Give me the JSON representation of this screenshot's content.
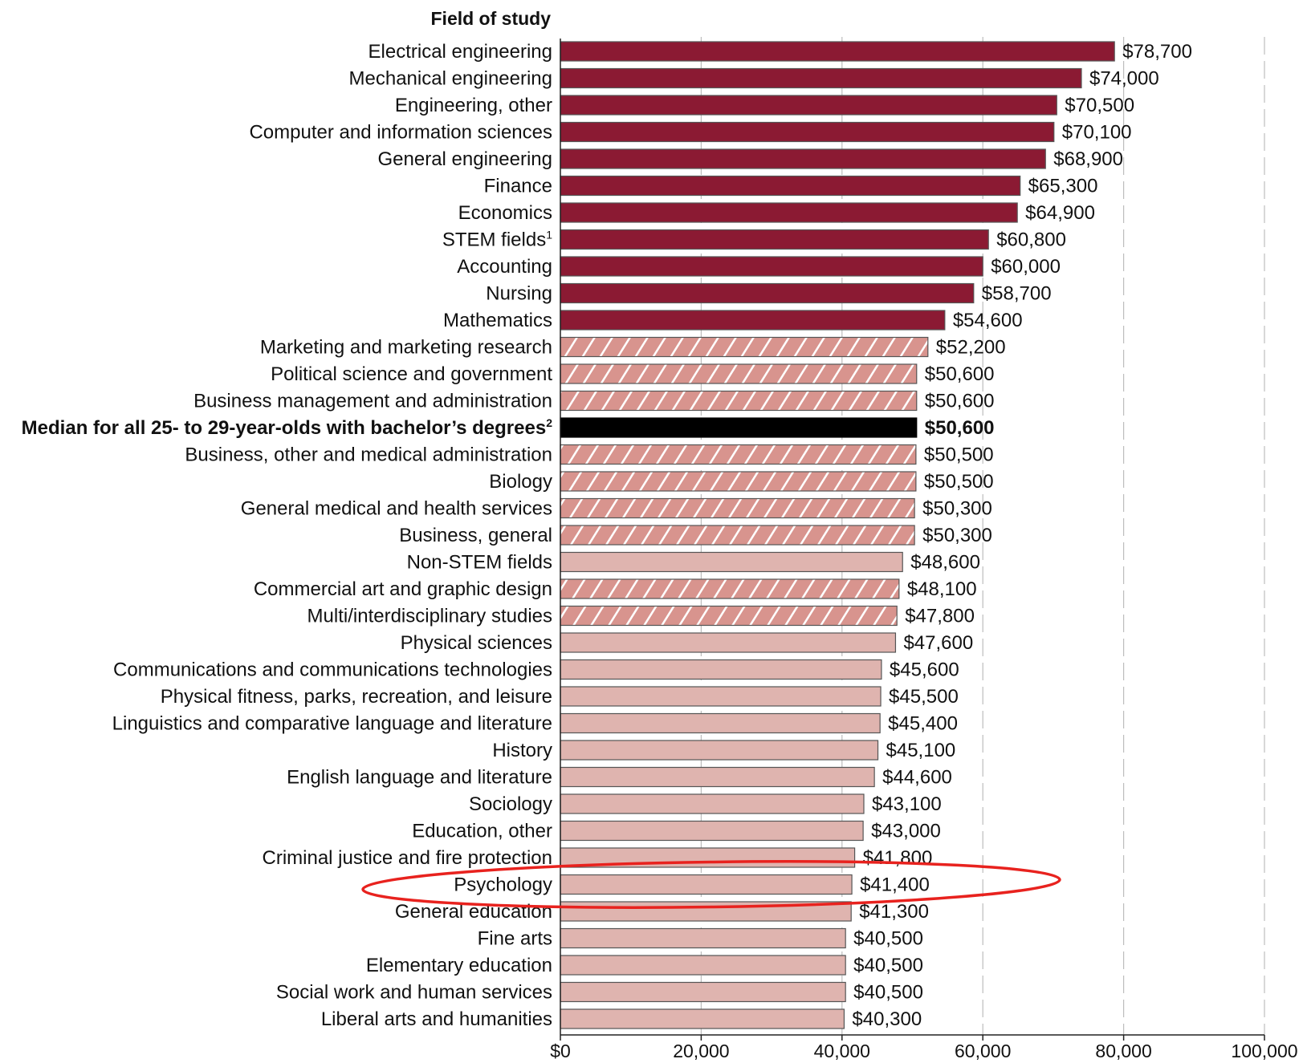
{
  "chart_data": {
    "type": "bar",
    "orientation": "horizontal",
    "category_axis_title": "Field of study",
    "xlim": [
      0,
      100000
    ],
    "x_ticks": [
      "$0",
      "20,000",
      "40,000",
      "60,000",
      "80,000",
      "100,000"
    ],
    "x_tick_values": [
      0,
      20000,
      40000,
      60000,
      80000,
      100000
    ],
    "grid": "vertical dashed",
    "colors": {
      "above_median": "#8b1a33",
      "near_median": "#d8948e",
      "below_median": "#dfb4af",
      "median": "#000000",
      "highlight_ellipse": "#e8221e"
    },
    "bars": [
      {
        "label": "Electrical engineering",
        "value": 78700,
        "value_label": "$78,700",
        "style": "above_median"
      },
      {
        "label": "Mechanical engineering",
        "value": 74000,
        "value_label": "$74,000",
        "style": "above_median"
      },
      {
        "label": "Engineering, other",
        "value": 70500,
        "value_label": "$70,500",
        "style": "above_median"
      },
      {
        "label": "Computer and information sciences",
        "value": 70100,
        "value_label": "$70,100",
        "style": "above_median"
      },
      {
        "label": "General engineering",
        "value": 68900,
        "value_label": "$68,900",
        "style": "above_median"
      },
      {
        "label": "Finance",
        "value": 65300,
        "value_label": "$65,300",
        "style": "above_median"
      },
      {
        "label": "Economics",
        "value": 64900,
        "value_label": "$64,900",
        "style": "above_median"
      },
      {
        "label": "STEM fields",
        "footnote": "1",
        "value": 60800,
        "value_label": "$60,800",
        "style": "above_median"
      },
      {
        "label": "Accounting",
        "value": 60000,
        "value_label": "$60,000",
        "style": "above_median"
      },
      {
        "label": "Nursing",
        "value": 58700,
        "value_label": "$58,700",
        "style": "above_median"
      },
      {
        "label": "Mathematics",
        "value": 54600,
        "value_label": "$54,600",
        "style": "above_median"
      },
      {
        "label": "Marketing and marketing research",
        "value": 52200,
        "value_label": "$52,200",
        "style": "near_median"
      },
      {
        "label": "Political science and government",
        "value": 50600,
        "value_label": "$50,600",
        "style": "near_median"
      },
      {
        "label": "Business management and administration",
        "value": 50600,
        "value_label": "$50,600",
        "style": "near_median"
      },
      {
        "label": "Median for all 25- to 29-year-olds with bachelor’s degrees",
        "footnote": "2",
        "value": 50600,
        "value_label": "$50,600",
        "style": "median"
      },
      {
        "label": "Business, other and medical administration",
        "value": 50500,
        "value_label": "$50,500",
        "style": "near_median"
      },
      {
        "label": "Biology",
        "value": 50500,
        "value_label": "$50,500",
        "style": "near_median"
      },
      {
        "label": "General medical and health services",
        "value": 50300,
        "value_label": "$50,300",
        "style": "near_median"
      },
      {
        "label": "Business, general",
        "value": 50300,
        "value_label": "$50,300",
        "style": "near_median"
      },
      {
        "label": "Non-STEM fields",
        "value": 48600,
        "value_label": "$48,600",
        "style": "below_median"
      },
      {
        "label": "Commercial art and graphic design",
        "value": 48100,
        "value_label": "$48,100",
        "style": "near_median"
      },
      {
        "label": "Multi/interdisciplinary studies",
        "value": 47800,
        "value_label": "$47,800",
        "style": "near_median"
      },
      {
        "label": "Physical sciences",
        "value": 47600,
        "value_label": "$47,600",
        "style": "below_median"
      },
      {
        "label": "Communications and communications technologies",
        "value": 45600,
        "value_label": "$45,600",
        "style": "below_median"
      },
      {
        "label": "Physical fitness, parks, recreation, and leisure",
        "value": 45500,
        "value_label": "$45,500",
        "style": "below_median"
      },
      {
        "label": "Linguistics and comparative language and literature",
        "value": 45400,
        "value_label": "$45,400",
        "style": "below_median"
      },
      {
        "label": "History",
        "value": 45100,
        "value_label": "$45,100",
        "style": "below_median"
      },
      {
        "label": "English language and literature",
        "value": 44600,
        "value_label": "$44,600",
        "style": "below_median"
      },
      {
        "label": "Sociology",
        "value": 43100,
        "value_label": "$43,100",
        "style": "below_median"
      },
      {
        "label": "Education, other",
        "value": 43000,
        "value_label": "$43,000",
        "style": "below_median"
      },
      {
        "label": "Criminal justice and fire protection",
        "value": 41800,
        "value_label": "$41,800",
        "style": "below_median"
      },
      {
        "label": "Psychology",
        "value": 41400,
        "value_label": "$41,400",
        "style": "below_median",
        "highlighted": true
      },
      {
        "label": "General education",
        "value": 41300,
        "value_label": "$41,300",
        "style": "below_median"
      },
      {
        "label": "Fine arts",
        "value": 40500,
        "value_label": "$40,500",
        "style": "below_median"
      },
      {
        "label": "Elementary education",
        "value": 40500,
        "value_label": "$40,500",
        "style": "below_median"
      },
      {
        "label": "Social work and human services",
        "value": 40500,
        "value_label": "$40,500",
        "style": "below_median"
      },
      {
        "label": "Liberal arts and humanities",
        "value": 40300,
        "value_label": "$40,300",
        "style": "below_median"
      }
    ]
  }
}
